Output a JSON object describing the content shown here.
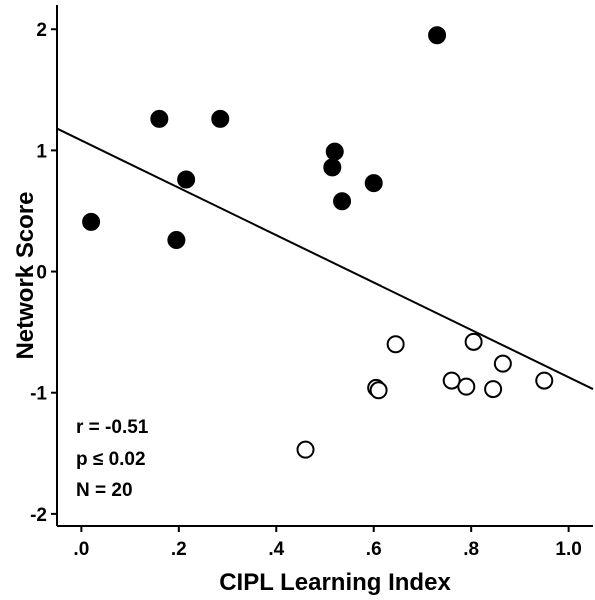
{
  "chart_data": {
    "type": "scatter",
    "xlabel": "CIPL Learning Index",
    "ylabel": "Network Score",
    "xlim": [
      -0.05,
      1.05
    ],
    "ylim": [
      -2.1,
      2.2
    ],
    "xticks": [
      0,
      0.2,
      0.4,
      0.6,
      0.8,
      1.0
    ],
    "xtick_labels": [
      ".0",
      ".2",
      ".4",
      ".6",
      ".8",
      "1.0"
    ],
    "yticks": [
      2,
      1,
      0,
      -1,
      -2
    ],
    "ytick_labels": [
      "2",
      "1",
      "0",
      "-1",
      "-2"
    ],
    "grid": false,
    "series": [
      {
        "marker": "filled-circle",
        "color": "#000000",
        "points": [
          {
            "x": 0.02,
            "y": 0.41
          },
          {
            "x": 0.16,
            "y": 1.26
          },
          {
            "x": 0.195,
            "y": 0.26
          },
          {
            "x": 0.215,
            "y": 0.76
          },
          {
            "x": 0.285,
            "y": 1.26
          },
          {
            "x": 0.515,
            "y": 0.86
          },
          {
            "x": 0.52,
            "y": 0.99
          },
          {
            "x": 0.535,
            "y": 0.58
          },
          {
            "x": 0.6,
            "y": 0.73
          },
          {
            "x": 0.73,
            "y": 1.95
          }
        ]
      },
      {
        "marker": "open-circle",
        "color": "#000000",
        "points": [
          {
            "x": 0.46,
            "y": -1.47
          },
          {
            "x": 0.605,
            "y": -0.96
          },
          {
            "x": 0.61,
            "y": -0.98
          },
          {
            "x": 0.645,
            "y": -0.6
          },
          {
            "x": 0.76,
            "y": -0.9
          },
          {
            "x": 0.79,
            "y": -0.95
          },
          {
            "x": 0.805,
            "y": -0.58
          },
          {
            "x": 0.845,
            "y": -0.97
          },
          {
            "x": 0.865,
            "y": -0.76
          },
          {
            "x": 0.95,
            "y": -0.9
          }
        ]
      }
    ],
    "fit_line": {
      "x": [
        -0.05,
        1.05
      ],
      "y": [
        1.18,
        -0.97
      ]
    },
    "annotations": [
      "r = -0.51",
      "p ≤ 0.02",
      "N = 20"
    ]
  }
}
